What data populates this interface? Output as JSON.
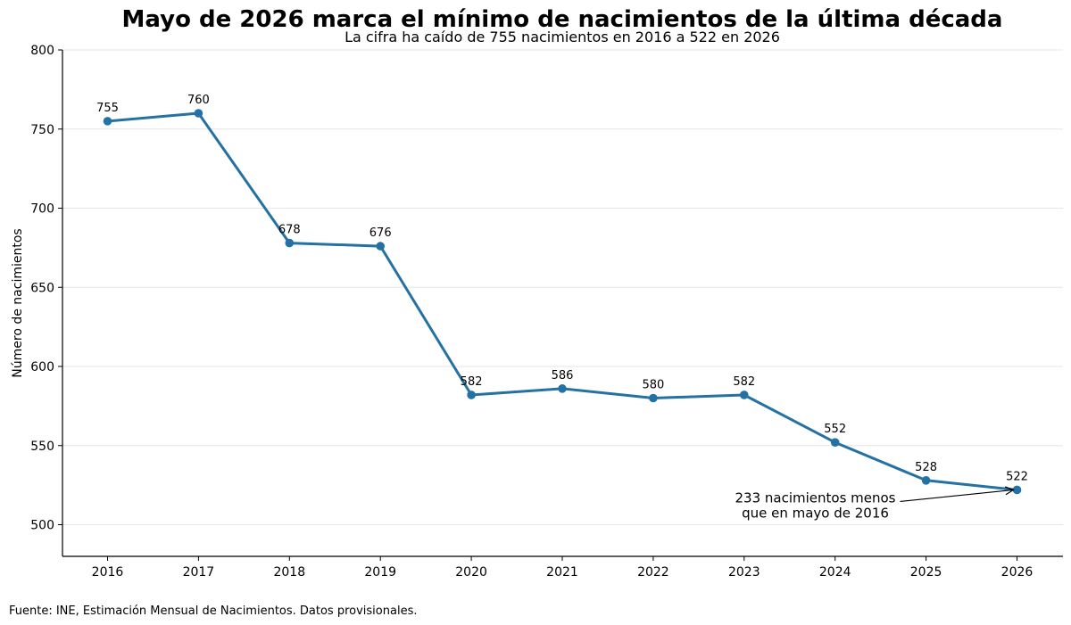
{
  "chart_data": {
    "type": "line",
    "title": "Mayo de 2026 marca el mínimo de nacimientos de la última década",
    "subtitle": "La cifra ha caído de 755 nacimientos en 2016 a 522 en 2026",
    "xlabel": "",
    "ylabel": "Número de nacimientos",
    "x": [
      "2016",
      "2017",
      "2018",
      "2019",
      "2020",
      "2021",
      "2022",
      "2023",
      "2024",
      "2025",
      "2026"
    ],
    "series": [
      {
        "values": [
          755,
          760,
          678,
          676,
          582,
          586,
          580,
          582,
          552,
          528,
          522
        ]
      }
    ],
    "ylim": [
      480,
      800
    ],
    "yticks": [
      500,
      550,
      600,
      650,
      700,
      750,
      800
    ],
    "grid": "horizontal",
    "colors": {
      "line": "#2471a3",
      "grid": "#e6e6e6",
      "axis": "#000000"
    },
    "annotation": {
      "lines": [
        "233 nacimientos menos",
        "que en mayo de 2016"
      ],
      "target_x": "2026",
      "target_y": 522
    },
    "source": "Fuente: INE, Estimación Mensual de Nacimientos. Datos provisionales."
  }
}
